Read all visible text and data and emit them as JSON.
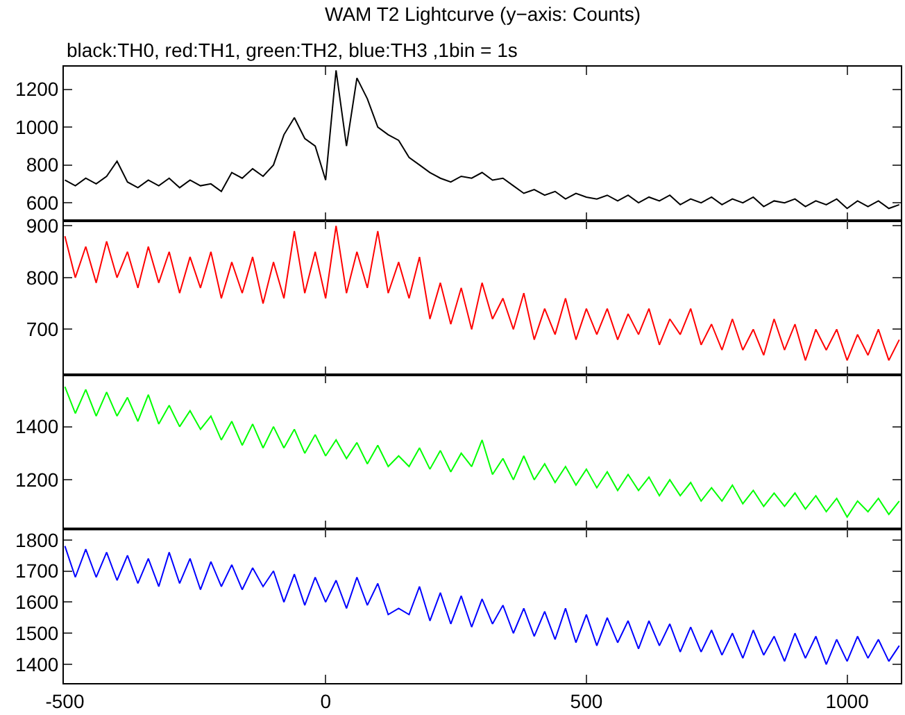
{
  "chart_data": [
    {
      "type": "line",
      "title": "WAM T2 Lightcurve (y−axis: Counts)",
      "subtitle": "black:TH0, red:TH1, green:TH2, blue:TH3 ,1bin = 1s",
      "tick_labels": "y",
      "x": [
        -500,
        -480,
        -460,
        -440,
        -420,
        -400,
        -380,
        -360,
        -340,
        -320,
        -300,
        -280,
        -260,
        -240,
        -220,
        -200,
        -180,
        -160,
        -140,
        -120,
        -100,
        -80,
        -60,
        -40,
        -20,
        0,
        20,
        40,
        60,
        80,
        100,
        120,
        140,
        160,
        180,
        200,
        220,
        240,
        260,
        280,
        300,
        320,
        340,
        360,
        380,
        400,
        420,
        440,
        460,
        480,
        500,
        520,
        540,
        560,
        580,
        600,
        620,
        640,
        660,
        680,
        700,
        720,
        740,
        760,
        780,
        800,
        820,
        840,
        860,
        880,
        900,
        920,
        940,
        960,
        980,
        1000,
        1020,
        1040,
        1060,
        1080,
        1100
      ],
      "series": [
        {
          "color": "#000000",
          "values": [
            720,
            690,
            730,
            700,
            740,
            820,
            710,
            680,
            720,
            690,
            730,
            680,
            720,
            690,
            700,
            660,
            760,
            730,
            780,
            740,
            800,
            960,
            1050,
            940,
            900,
            720,
            1300,
            900,
            1260,
            1150,
            1000,
            960,
            930,
            840,
            800,
            760,
            730,
            710,
            740,
            730,
            760,
            720,
            730,
            690,
            650,
            670,
            640,
            660,
            620,
            650,
            630,
            620,
            640,
            610,
            640,
            600,
            630,
            610,
            640,
            590,
            620,
            600,
            630,
            590,
            620,
            600,
            630,
            580,
            610,
            600,
            620,
            580,
            610,
            590,
            620,
            570,
            610,
            580,
            610,
            570,
            590
          ]
        }
      ],
      "xlim": [
        -502,
        1103
      ],
      "xticks": [
        -500,
        0,
        500,
        1000
      ],
      "ylim": [
        505,
        1320
      ],
      "yticks": [
        600,
        800,
        1000,
        1200
      ]
    },
    {
      "type": "line",
      "tick_labels": "y",
      "x": [
        -500,
        -480,
        -460,
        -440,
        -420,
        -400,
        -380,
        -360,
        -340,
        -320,
        -300,
        -280,
        -260,
        -240,
        -220,
        -200,
        -180,
        -160,
        -140,
        -120,
        -100,
        -80,
        -60,
        -40,
        -20,
        0,
        20,
        40,
        60,
        80,
        100,
        120,
        140,
        160,
        180,
        200,
        220,
        240,
        260,
        280,
        300,
        320,
        340,
        360,
        380,
        400,
        420,
        440,
        460,
        480,
        500,
        520,
        540,
        560,
        580,
        600,
        620,
        640,
        660,
        680,
        700,
        720,
        740,
        760,
        780,
        800,
        820,
        840,
        860,
        880,
        900,
        920,
        940,
        960,
        980,
        1000,
        1020,
        1040,
        1060,
        1080,
        1100
      ],
      "series": [
        {
          "color": "#ff0000",
          "values": [
            880,
            800,
            860,
            790,
            870,
            800,
            850,
            780,
            860,
            790,
            850,
            770,
            840,
            780,
            850,
            760,
            830,
            770,
            840,
            750,
            830,
            760,
            890,
            770,
            850,
            760,
            900,
            770,
            850,
            780,
            890,
            770,
            830,
            760,
            840,
            720,
            790,
            710,
            780,
            700,
            790,
            720,
            760,
            700,
            770,
            680,
            740,
            690,
            760,
            680,
            740,
            690,
            740,
            680,
            730,
            690,
            740,
            670,
            720,
            690,
            740,
            670,
            710,
            660,
            720,
            660,
            700,
            650,
            720,
            660,
            710,
            640,
            700,
            660,
            700,
            640,
            690,
            650,
            700,
            640,
            680
          ]
        }
      ],
      "xlim": [
        -502,
        1103
      ],
      "xticks": [
        -500,
        0,
        500,
        1000
      ],
      "ylim": [
        612,
        910
      ],
      "yticks": [
        700,
        800,
        900
      ]
    },
    {
      "type": "line",
      "tick_labels": "y",
      "x": [
        -500,
        -480,
        -460,
        -440,
        -420,
        -400,
        -380,
        -360,
        -340,
        -320,
        -300,
        -280,
        -260,
        -240,
        -220,
        -200,
        -180,
        -160,
        -140,
        -120,
        -100,
        -80,
        -60,
        -40,
        -20,
        0,
        20,
        40,
        60,
        80,
        100,
        120,
        140,
        160,
        180,
        200,
        220,
        240,
        260,
        280,
        300,
        320,
        340,
        360,
        380,
        400,
        420,
        440,
        460,
        480,
        500,
        520,
        540,
        560,
        580,
        600,
        620,
        640,
        660,
        680,
        700,
        720,
        740,
        760,
        780,
        800,
        820,
        840,
        860,
        880,
        900,
        920,
        940,
        960,
        980,
        1000,
        1020,
        1040,
        1060,
        1080,
        1100
      ],
      "series": [
        {
          "color": "#00ff00",
          "values": [
            1550,
            1450,
            1540,
            1440,
            1530,
            1440,
            1510,
            1420,
            1520,
            1410,
            1480,
            1400,
            1460,
            1390,
            1440,
            1350,
            1420,
            1330,
            1410,
            1320,
            1400,
            1320,
            1390,
            1300,
            1370,
            1290,
            1350,
            1280,
            1340,
            1260,
            1330,
            1250,
            1290,
            1250,
            1320,
            1240,
            1310,
            1230,
            1300,
            1250,
            1350,
            1220,
            1280,
            1200,
            1290,
            1200,
            1260,
            1190,
            1250,
            1180,
            1240,
            1170,
            1230,
            1160,
            1220,
            1160,
            1210,
            1140,
            1200,
            1140,
            1190,
            1120,
            1170,
            1120,
            1180,
            1110,
            1160,
            1100,
            1150,
            1100,
            1150,
            1090,
            1140,
            1080,
            1130,
            1060,
            1120,
            1080,
            1130,
            1070,
            1120
          ]
        }
      ],
      "xlim": [
        -502,
        1103
      ],
      "xticks": [
        -500,
        0,
        500,
        1000
      ],
      "ylim": [
        1015,
        1595
      ],
      "yticks": [
        1200,
        1400
      ]
    },
    {
      "type": "line",
      "x": [
        -500,
        -480,
        -460,
        -440,
        -420,
        -400,
        -380,
        -360,
        -340,
        -320,
        -300,
        -280,
        -260,
        -240,
        -220,
        -200,
        -180,
        -160,
        -140,
        -120,
        -100,
        -80,
        -60,
        -40,
        -20,
        0,
        20,
        40,
        60,
        80,
        100,
        120,
        140,
        160,
        180,
        200,
        220,
        240,
        260,
        280,
        300,
        320,
        340,
        360,
        380,
        400,
        420,
        440,
        460,
        480,
        500,
        520,
        540,
        560,
        580,
        600,
        620,
        640,
        660,
        680,
        700,
        720,
        740,
        760,
        780,
        800,
        820,
        840,
        860,
        880,
        900,
        920,
        940,
        960,
        980,
        1000,
        1020,
        1040,
        1060,
        1080,
        1100
      ],
      "series": [
        {
          "color": "#0000ff",
          "values": [
            1780,
            1680,
            1770,
            1680,
            1760,
            1670,
            1750,
            1660,
            1740,
            1650,
            1760,
            1660,
            1740,
            1640,
            1730,
            1650,
            1720,
            1640,
            1710,
            1650,
            1700,
            1600,
            1690,
            1590,
            1680,
            1600,
            1670,
            1580,
            1680,
            1590,
            1660,
            1560,
            1580,
            1560,
            1650,
            1540,
            1630,
            1530,
            1620,
            1520,
            1610,
            1530,
            1590,
            1500,
            1580,
            1490,
            1570,
            1480,
            1580,
            1470,
            1560,
            1460,
            1550,
            1470,
            1540,
            1450,
            1540,
            1460,
            1530,
            1440,
            1520,
            1440,
            1510,
            1430,
            1500,
            1420,
            1510,
            1430,
            1490,
            1410,
            1500,
            1420,
            1490,
            1400,
            1480,
            1410,
            1490,
            1420,
            1480,
            1410,
            1460
          ]
        }
      ],
      "xlim": [
        -502,
        1103
      ],
      "xticks": [
        -500,
        0,
        500,
        1000
      ],
      "ylim": [
        1340,
        1835
      ],
      "yticks": [
        1400,
        1500,
        1600,
        1700,
        1800
      ]
    }
  ]
}
